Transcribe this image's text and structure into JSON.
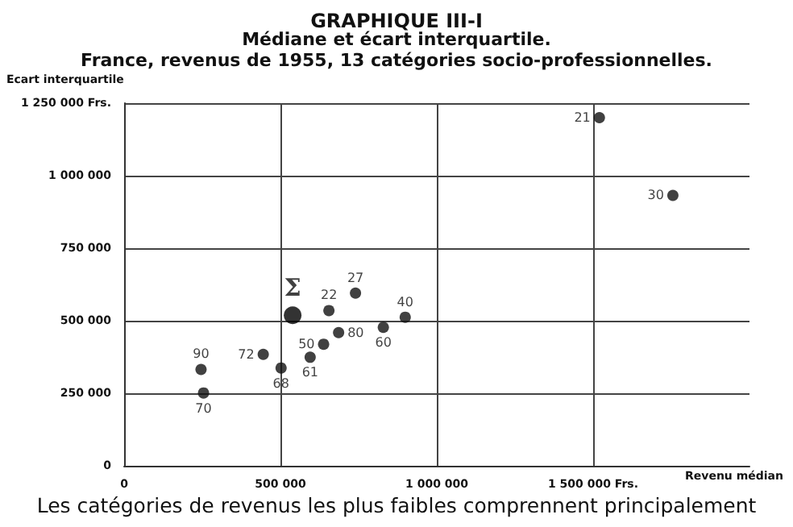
{
  "chart_data": {
    "type": "scatter",
    "title": "GRAPHIQUE III-I",
    "subtitle": "Médiane et écart interquartile.\nFrance, revenus de 1955, 13 catégories socio-professionnelles.",
    "xlabel": "Revenu médian",
    "ylabel": "Ecart interquartile",
    "series": [
      {
        "color": "#111111",
        "marker": "circle",
        "x": [
          655000,
          740000,
          899000,
          829000,
          686000,
          638000,
          595000,
          445000,
          502000,
          246000,
          254000,
          1520000,
          1755000
        ],
        "values": [
          535000,
          595000,
          512000,
          477000,
          459000,
          419000,
          374000,
          384000,
          337000,
          332000,
          251000,
          1200000,
          932000
        ]
      },
      {
        "color": "#000000",
        "marker": "circle",
        "x": [
          539000
        ],
        "values": [
          519000
        ]
      }
    ],
    "annotations": [
      {
        "text": "22",
        "x": 655000,
        "y": 535000
      },
      {
        "text": "27",
        "x": 740000,
        "y": 595000
      },
      {
        "text": "40",
        "x": 899000,
        "y": 512000
      },
      {
        "text": "60",
        "x": 829000,
        "y": 477000
      },
      {
        "text": "80",
        "x": 686000,
        "y": 459000
      },
      {
        "text": "50",
        "x": 638000,
        "y": 419000
      },
      {
        "text": "61",
        "x": 595000,
        "y": 374000
      },
      {
        "text": "72",
        "x": 445000,
        "y": 384000
      },
      {
        "text": "68",
        "x": 502000,
        "y": 337000
      },
      {
        "text": "90",
        "x": 246000,
        "y": 332000
      },
      {
        "text": "70",
        "x": 254000,
        "y": 251000
      },
      {
        "text": "21",
        "x": 1520000,
        "y": 1200000
      },
      {
        "text": "30",
        "x": 1755000,
        "y": 932000
      },
      {
        "text": "Σ",
        "x": 539000,
        "y": 519000
      },
      "Les catégories de revenus les plus faibles comprennent principalement"
    ],
    "xlim": [
      0,
      2000000
    ],
    "xticks": [
      {
        "value": 0,
        "label": "0"
      },
      {
        "value": 500000,
        "label": "500 000"
      },
      {
        "value": 1000000,
        "label": "1 000 000"
      },
      {
        "value": 1500000,
        "label": "1 500 000 Frs."
      }
    ],
    "ylim": [
      0,
      1250000
    ],
    "yticks": [
      {
        "value": 0,
        "label": "0"
      },
      {
        "value": 250000,
        "label": "250 000"
      },
      {
        "value": 500000,
        "label": "500 000"
      },
      {
        "value": 750000,
        "label": "750 000"
      },
      {
        "value": 1000000,
        "label": "1 000 000"
      },
      {
        "value": 1250000,
        "label": "1 250 000 Frs."
      }
    ],
    "grid": true
  }
}
